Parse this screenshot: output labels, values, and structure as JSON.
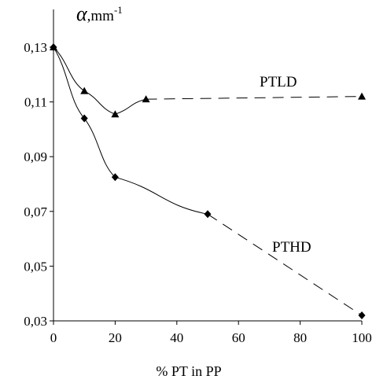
{
  "chart_data": {
    "type": "line",
    "xlabel": "% PT in PP",
    "ylabel": {
      "symbol": "α",
      "unit": ",mm",
      "exponent": "-1"
    },
    "xlim": [
      0,
      100
    ],
    "ylim": [
      0.03,
      0.13
    ],
    "x_ticks": [
      "0",
      "20",
      "40",
      "60",
      "80",
      "100"
    ],
    "y_ticks": [
      "0,03",
      "0,05",
      "0,07",
      "0,09",
      "0,11",
      "0,13"
    ],
    "grid": false,
    "series": [
      {
        "name": "PTLD",
        "marker": "triangle",
        "x": [
          0,
          10,
          20,
          30,
          100
        ],
        "y": [
          0.13,
          0.114,
          0.1055,
          0.111,
          0.112
        ],
        "segment_styles": [
          "solid",
          "solid",
          "solid",
          "dashed"
        ]
      },
      {
        "name": "PTHD",
        "marker": "diamond",
        "x": [
          0,
          10,
          20,
          50,
          100
        ],
        "y": [
          0.13,
          0.104,
          0.0825,
          0.069,
          0.032
        ],
        "segment_styles": [
          "solid",
          "solid",
          "solid",
          "dashed"
        ]
      }
    ]
  }
}
